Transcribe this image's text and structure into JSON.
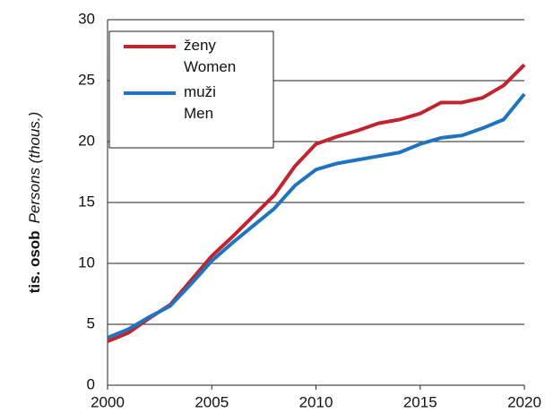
{
  "chart_data": {
    "type": "line",
    "y_label_main": "tis. osob",
    "y_label_sub": "Persons (thous.)",
    "x": [
      2000,
      2001,
      2002,
      2003,
      2004,
      2005,
      2006,
      2007,
      2008,
      2009,
      2010,
      2011,
      2012,
      2013,
      2014,
      2015,
      2016,
      2017,
      2018,
      2019,
      2020
    ],
    "series": [
      {
        "name": "ženy\nWomen",
        "color": "#c0242e",
        "values": [
          3.6,
          4.3,
          5.5,
          6.6,
          8.6,
          10.6,
          12.2,
          13.9,
          15.6,
          18.0,
          19.8,
          20.4,
          20.9,
          21.5,
          21.8,
          22.3,
          23.2,
          23.2,
          23.6,
          24.6,
          26.3
        ]
      },
      {
        "name": "muži\nMen",
        "color": "#1f74bf",
        "values": [
          3.9,
          4.6,
          5.6,
          6.5,
          8.3,
          10.2,
          11.7,
          13.1,
          14.5,
          16.4,
          17.7,
          18.2,
          18.5,
          18.8,
          19.1,
          19.8,
          20.3,
          20.5,
          21.1,
          21.8,
          23.9
        ]
      }
    ],
    "xlim": [
      2000,
      2020
    ],
    "xticks": [
      2000,
      2005,
      2010,
      2015,
      2020
    ],
    "ylim": [
      0,
      30
    ],
    "yticks": [
      0,
      5,
      10,
      15,
      20,
      25,
      30
    ],
    "grid": true
  }
}
